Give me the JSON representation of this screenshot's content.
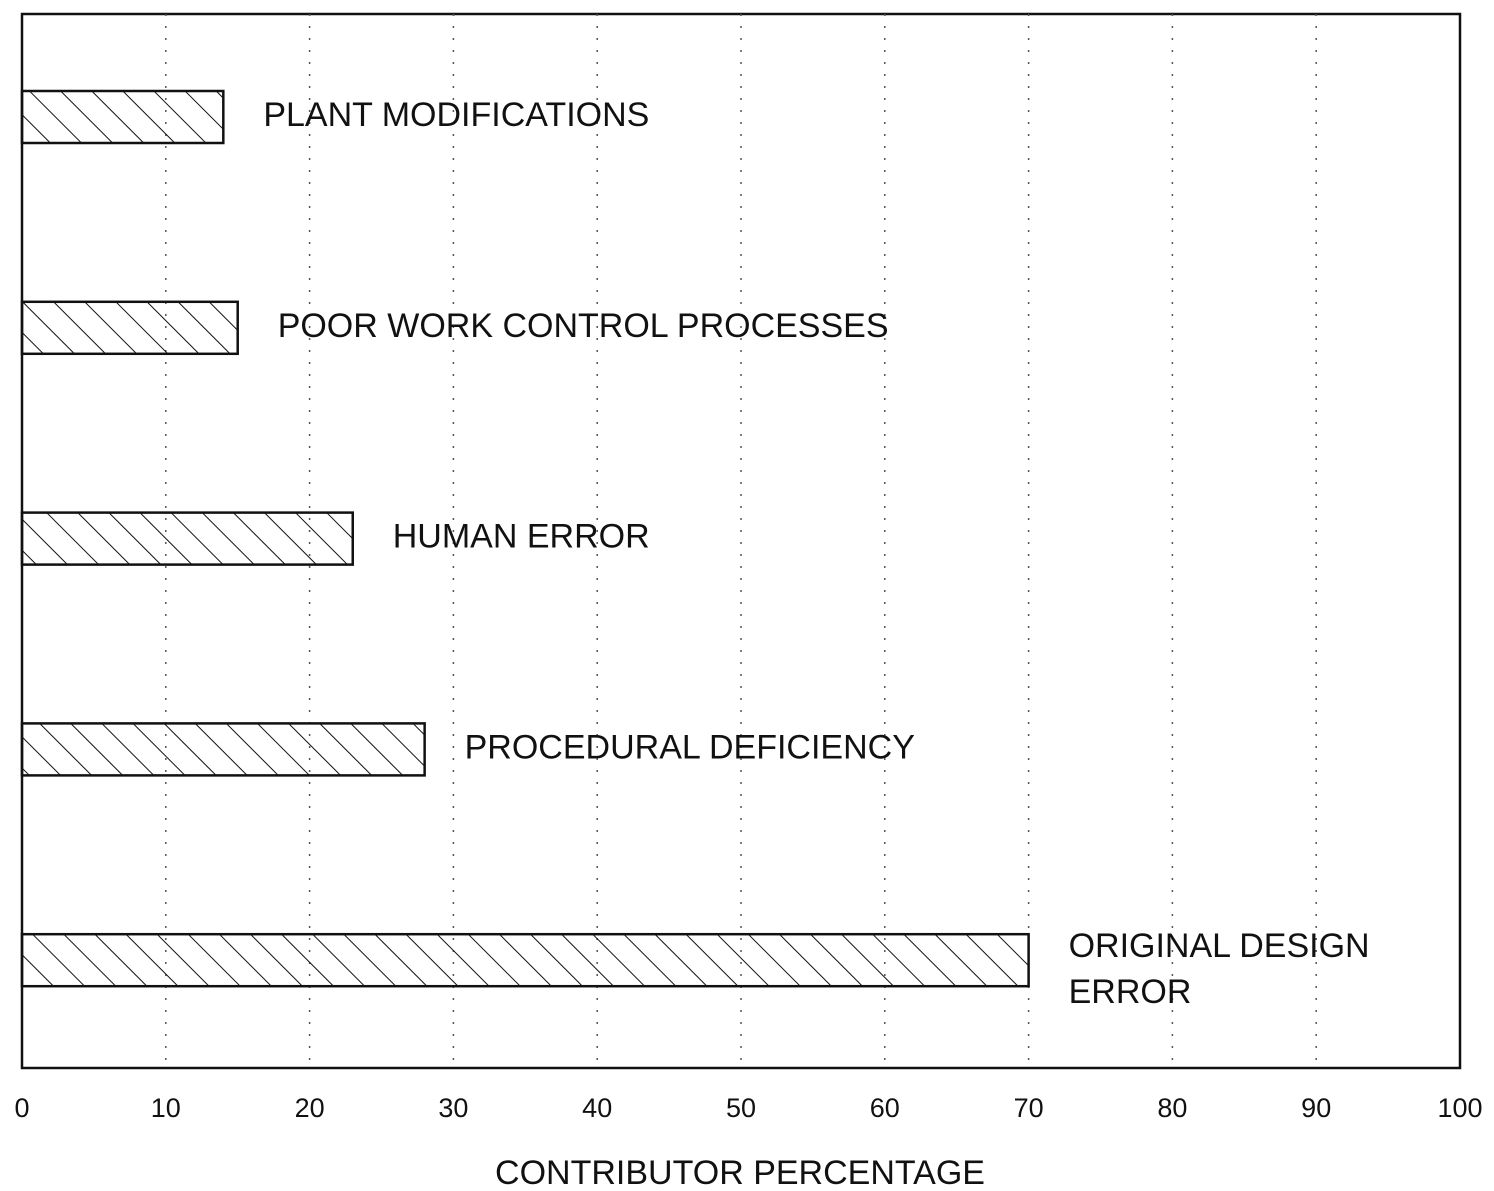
{
  "chart_data": {
    "type": "bar",
    "orientation": "horizontal",
    "xlabel": "CONTRIBUTOR PERCENTAGE",
    "categories": [
      "PLANT MODIFICATIONS",
      "POOR WORK CONTROL PROCESSES",
      "HUMAN ERROR",
      "PROCEDURAL DEFICIENCY",
      "ORIGINAL DESIGN ERROR"
    ],
    "values": [
      14,
      15,
      23,
      28,
      70
    ],
    "color": "#111111",
    "xlim": [
      0,
      100
    ],
    "xticks": [
      0,
      10,
      20,
      30,
      40,
      50,
      60,
      70,
      80,
      90,
      100
    ],
    "grid": true
  }
}
